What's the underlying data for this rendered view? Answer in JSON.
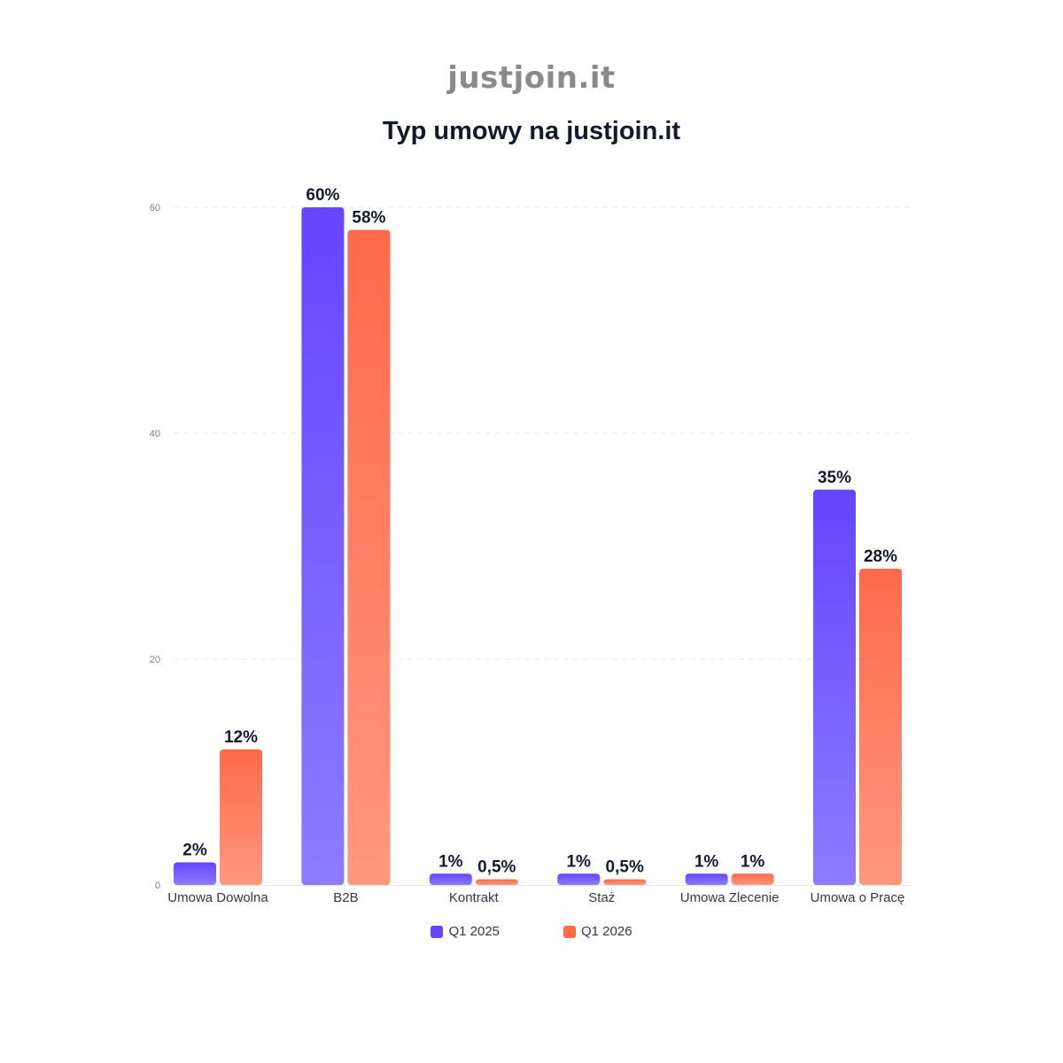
{
  "brand": "justjoin.it",
  "chart_data": {
    "type": "bar",
    "title": "Typ umowy na justjoin.it",
    "xlabel": "",
    "ylabel": "",
    "ylim": [
      0,
      60
    ],
    "yticks": [
      0,
      20,
      40,
      60
    ],
    "grid": true,
    "legend_position": "bottom-center",
    "categories": [
      "Umowa Dowolna",
      "B2B",
      "Kontrakt",
      "Staż",
      "Umowa Zlecenie",
      "Umowa o Pracę"
    ],
    "series": [
      {
        "name": "Q1 2025",
        "color": "#6645FF",
        "values": [
          2,
          60,
          1,
          1,
          1,
          35
        ],
        "labels": [
          "2%",
          "60%",
          "1%",
          "1%",
          "1%",
          "35%"
        ]
      },
      {
        "name": "Q1 2026",
        "color": "#FF6A4A",
        "values": [
          12,
          58,
          0.5,
          0.5,
          1,
          28
        ],
        "labels": [
          "12%",
          "58%",
          "0,5%",
          "0,5%",
          "1%",
          "28%"
        ]
      }
    ]
  }
}
